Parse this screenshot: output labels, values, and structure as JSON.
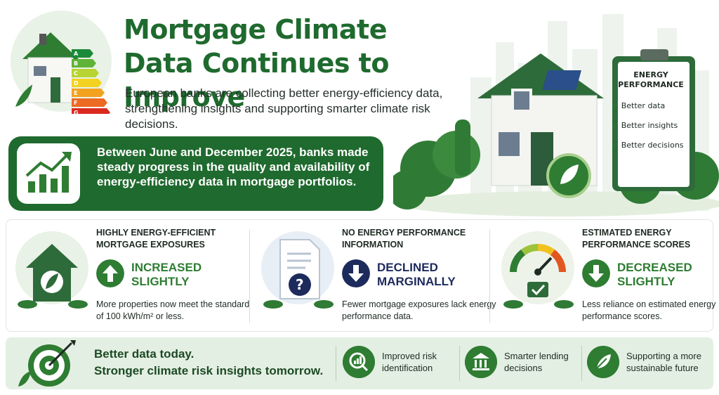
{
  "header": {
    "title_line1": "Mortgage Climate",
    "title_line2": "Data Continues to Improve",
    "subtitle": "European banks are collecting better energy-efficiency data, strengthening insights and supporting smarter climate risk decisions.",
    "energy_labels": [
      "A",
      "B",
      "C",
      "D",
      "E",
      "F",
      "G"
    ]
  },
  "banner": {
    "text": "Between June and December 2025, banks made steady progress in the quality and availability of energy-efficiency data in mortgage portfolios."
  },
  "clipboard": {
    "title_line1": "ENERGY",
    "title_line2": "PERFORMANCE",
    "items": [
      "Better data",
      "Better insights",
      "Better decisions"
    ]
  },
  "findings": [
    {
      "category": "Highly energy-efficient mortgage exposures",
      "trend": "Increased slightly",
      "direction": "up",
      "description": "More properties now meet the standard of 100 kWh/m² or less."
    },
    {
      "category": "No energy performance information",
      "trend": "Declined marginally",
      "direction": "down",
      "description": "Fewer mortgage exposures lack energy performance data."
    },
    {
      "category": "Estimated energy performance scores",
      "trend": "Decreased slightly",
      "direction": "down",
      "description": "Less reliance on estimated energy performance scores."
    }
  ],
  "footer": {
    "tagline_line1": "Better data today.",
    "tagline_line2": "Stronger climate risk insights tomorrow.",
    "benefits": [
      {
        "icon": "magnifier-chart-icon",
        "text": "Improved risk identification"
      },
      {
        "icon": "bank-icon",
        "text": "Smarter lending decisions"
      },
      {
        "icon": "leaf-icon",
        "text": "Supporting a more sustainable future"
      }
    ]
  },
  "colors": {
    "brand_green": "#1f6a2e",
    "up_green": "#2e7d32",
    "down_navy": "#1d2a5c"
  }
}
